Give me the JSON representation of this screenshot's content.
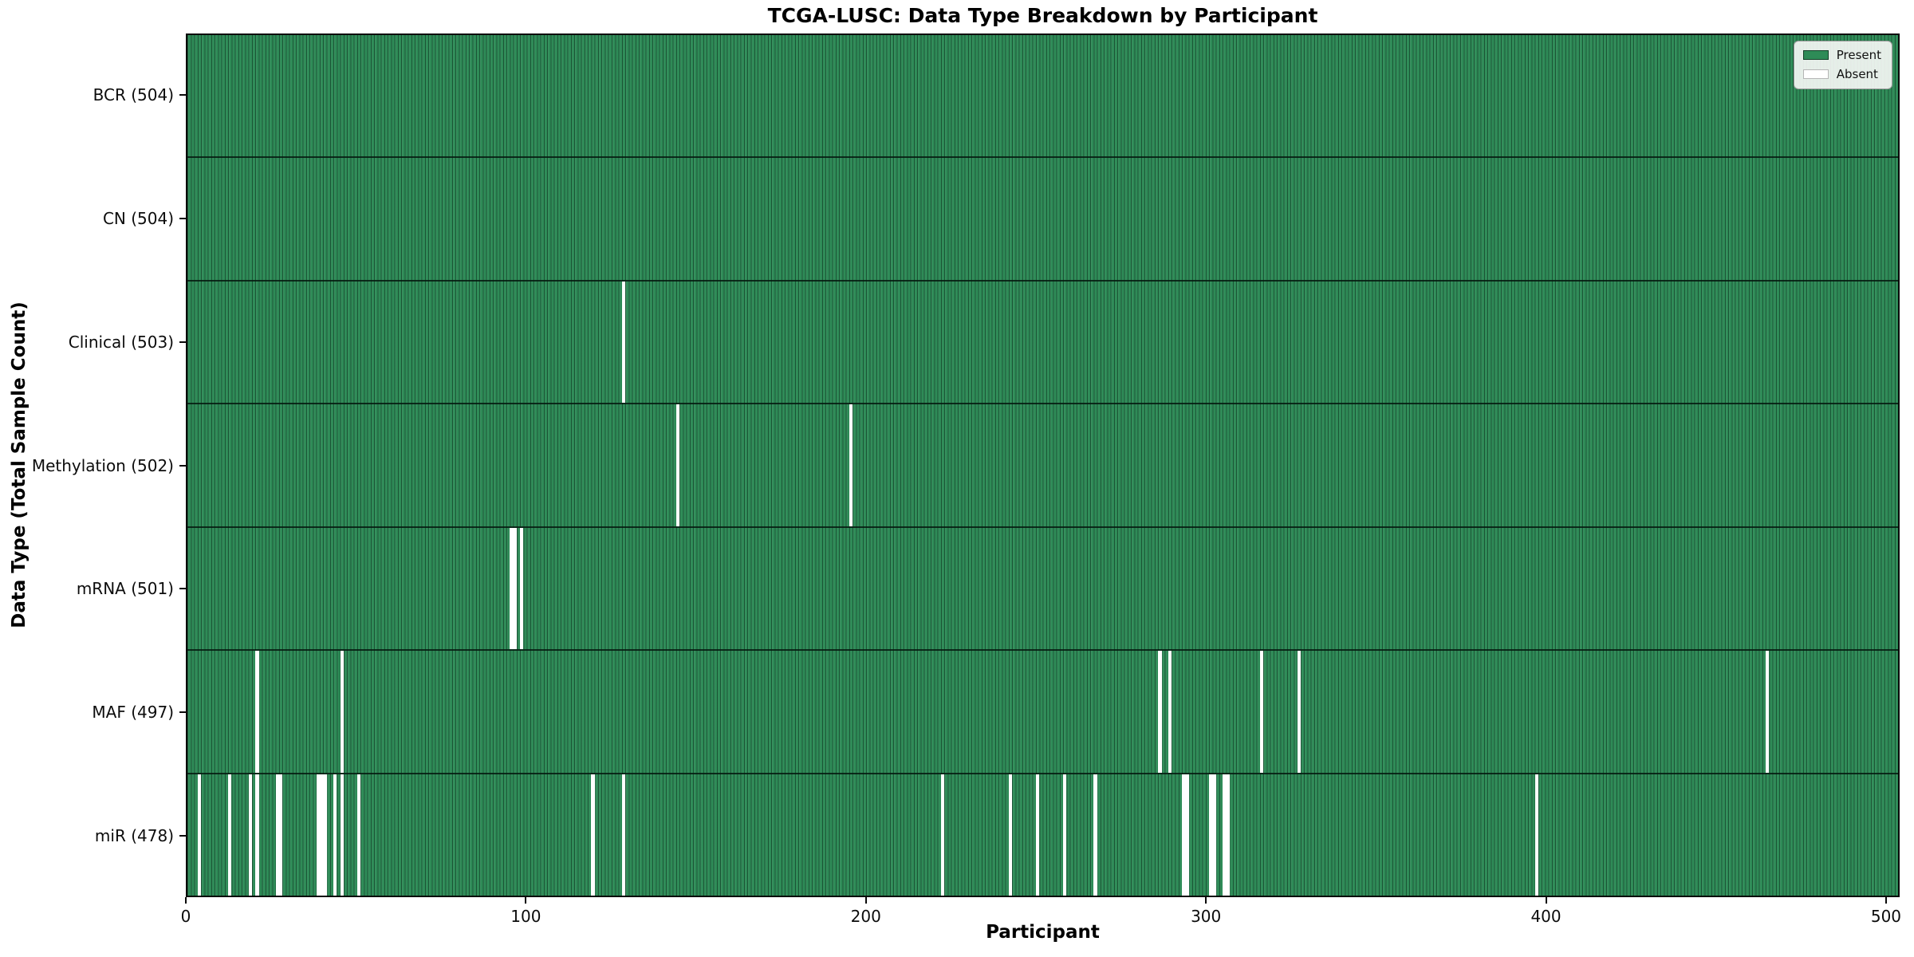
{
  "chart_data": {
    "type": "heatmap",
    "title": "TCGA-LUSC: Data Type Breakdown by Participant",
    "xlabel": "Participant",
    "ylabel": "Data Type (Total Sample Count)",
    "xlim": [
      0,
      504
    ],
    "n_participants": 504,
    "x_ticks": [
      0,
      100,
      200,
      300,
      400,
      500
    ],
    "grid": false,
    "legend": {
      "position": "upper right",
      "entries": [
        {
          "label": "Present",
          "color": "#2e8b57"
        },
        {
          "label": "Absent",
          "color": "#ffffff"
        }
      ]
    },
    "colors": {
      "present": "#2e8b57",
      "absent": "#ffffff",
      "bar_edge": "#0a2818"
    },
    "rows": [
      {
        "label": "BCR (504)",
        "data_type": "BCR",
        "present_count": 504,
        "absent_participants": []
      },
      {
        "label": "CN (504)",
        "data_type": "CN",
        "present_count": 504,
        "absent_participants": []
      },
      {
        "label": "Clinical (503)",
        "data_type": "Clinical",
        "present_count": 503,
        "absent_participants": [
          128
        ]
      },
      {
        "label": "Methylation (502)",
        "data_type": "Methylation",
        "present_count": 502,
        "absent_participants": [
          144,
          195
        ]
      },
      {
        "label": "mRNA (501)",
        "data_type": "mRNA",
        "present_count": 501,
        "absent_participants": [
          95,
          96,
          98
        ]
      },
      {
        "label": "MAF (497)",
        "data_type": "MAF",
        "present_count": 497,
        "absent_participants": [
          20,
          45,
          286,
          289,
          316,
          327,
          465
        ]
      },
      {
        "label": "miR (478)",
        "data_type": "miR",
        "present_count": 478,
        "absent_participants": [
          3,
          12,
          18,
          20,
          26,
          27,
          38,
          39,
          40,
          43,
          45,
          50,
          119,
          128,
          222,
          242,
          250,
          258,
          267,
          293,
          294,
          301,
          302,
          305,
          306,
          397
        ]
      }
    ]
  }
}
